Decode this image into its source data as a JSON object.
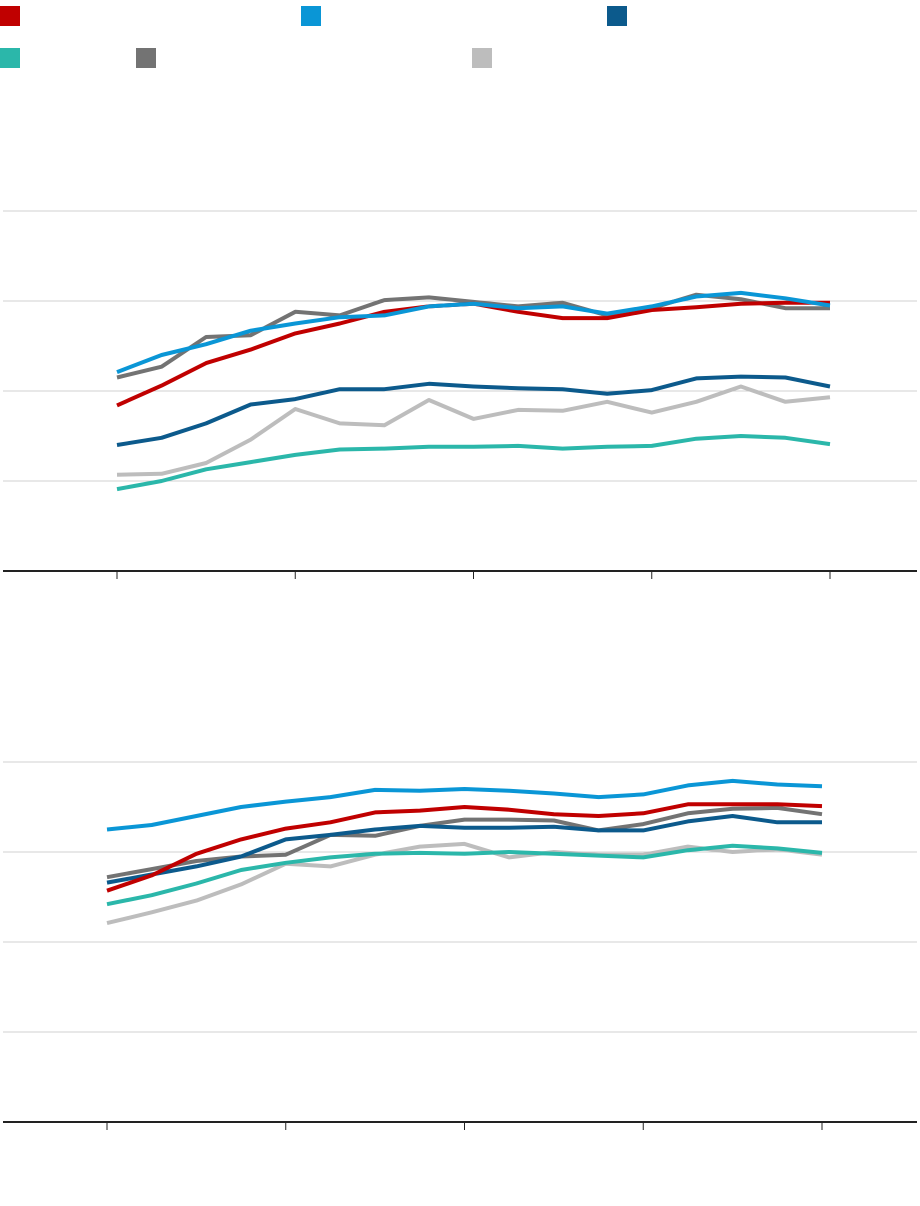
{
  "legend": [
    {
      "series": "s1",
      "color": "#c00000",
      "label": ""
    },
    {
      "series": "s2",
      "color": "#0a96d6",
      "label": ""
    },
    {
      "series": "s3",
      "color": "#0c5a8c",
      "label": ""
    },
    {
      "series": "s4",
      "color": "#2bb7aa",
      "label": ""
    },
    {
      "series": "s5",
      "color": "#737373",
      "label": ""
    },
    {
      "series": "s6",
      "color": "#bdbdbd",
      "label": ""
    }
  ],
  "chart_data": [
    {
      "type": "line",
      "title": "",
      "xlabel": "",
      "ylabel": "",
      "ylim": [
        0,
        4
      ],
      "yticks": [
        1,
        2,
        3,
        4
      ],
      "grid": true,
      "x": [
        0,
        1,
        2,
        3,
        4,
        5,
        6,
        7,
        8,
        9,
        10,
        11,
        12,
        13,
        14,
        15,
        16
      ],
      "xticks": [
        0,
        4,
        8,
        12,
        16
      ],
      "series": [
        {
          "color": "#737373",
          "values": [
            2.15,
            2.27,
            2.6,
            2.62,
            2.88,
            2.84,
            3.01,
            3.04,
            2.99,
            2.94,
            2.98,
            2.84,
            2.92,
            3.07,
            3.02,
            2.92,
            2.92
          ]
        },
        {
          "color": "#bdbdbd",
          "values": [
            1.07,
            1.08,
            1.2,
            1.46,
            1.8,
            1.64,
            1.62,
            1.9,
            1.69,
            1.79,
            1.78,
            1.88,
            1.76,
            1.88,
            2.05,
            1.88,
            1.93
          ]
        },
        {
          "color": "#2bb7aa",
          "values": [
            0.91,
            1.0,
            1.13,
            1.21,
            1.29,
            1.35,
            1.36,
            1.38,
            1.38,
            1.39,
            1.36,
            1.38,
            1.39,
            1.47,
            1.5,
            1.48,
            1.41
          ]
        },
        {
          "color": "#0c5a8c",
          "values": [
            1.4,
            1.48,
            1.64,
            1.85,
            1.91,
            2.02,
            2.02,
            2.08,
            2.05,
            2.03,
            2.02,
            1.97,
            2.01,
            2.14,
            2.16,
            2.15,
            2.05
          ]
        },
        {
          "color": "#c00000",
          "values": [
            1.84,
            2.06,
            2.31,
            2.46,
            2.64,
            2.75,
            2.88,
            2.94,
            2.97,
            2.88,
            2.81,
            2.81,
            2.9,
            2.93,
            2.97,
            2.98,
            2.98
          ]
        },
        {
          "color": "#0a96d6",
          "values": [
            2.21,
            2.4,
            2.52,
            2.67,
            2.75,
            2.82,
            2.84,
            2.94,
            2.97,
            2.92,
            2.94,
            2.86,
            2.94,
            3.05,
            3.09,
            3.03,
            2.95
          ]
        }
      ]
    },
    {
      "type": "line",
      "title": "",
      "xlabel": "",
      "ylabel": "",
      "ylim": [
        0,
        4
      ],
      "yticks": [
        1,
        2,
        3,
        4
      ],
      "grid": true,
      "x": [
        0,
        1,
        2,
        3,
        4,
        5,
        6,
        7,
        8,
        9,
        10,
        11,
        12,
        13,
        14,
        15,
        16
      ],
      "xticks": [
        0,
        4,
        8,
        12,
        16
      ],
      "series": [
        {
          "color": "#bdbdbd",
          "values": [
            2.21,
            2.33,
            2.46,
            2.64,
            2.87,
            2.84,
            2.97,
            3.06,
            3.09,
            2.94,
            3.0,
            2.97,
            2.97,
            3.06,
            3.0,
            3.03,
            2.97
          ]
        },
        {
          "color": "#737373",
          "values": [
            2.72,
            2.81,
            2.9,
            2.95,
            2.97,
            3.19,
            3.18,
            3.29,
            3.36,
            3.36,
            3.35,
            3.24,
            3.31,
            3.43,
            3.48,
            3.49,
            3.42
          ]
        },
        {
          "color": "#2bb7aa",
          "values": [
            2.42,
            2.52,
            2.65,
            2.8,
            2.88,
            2.94,
            2.98,
            2.99,
            2.98,
            3.0,
            2.98,
            2.96,
            2.94,
            3.02,
            3.07,
            3.04,
            2.99
          ]
        },
        {
          "color": "#0c5a8c",
          "values": [
            2.66,
            2.75,
            2.84,
            2.95,
            3.14,
            3.19,
            3.25,
            3.29,
            3.27,
            3.27,
            3.28,
            3.24,
            3.24,
            3.34,
            3.4,
            3.33,
            3.33
          ]
        },
        {
          "color": "#c00000",
          "values": [
            2.57,
            2.74,
            2.98,
            3.14,
            3.26,
            3.33,
            3.44,
            3.46,
            3.5,
            3.47,
            3.42,
            3.4,
            3.43,
            3.53,
            3.53,
            3.53,
            3.51
          ]
        },
        {
          "color": "#0a96d6",
          "values": [
            3.25,
            3.3,
            3.4,
            3.5,
            3.56,
            3.61,
            3.69,
            3.68,
            3.7,
            3.68,
            3.65,
            3.61,
            3.64,
            3.74,
            3.79,
            3.75,
            3.73
          ]
        }
      ]
    }
  ]
}
